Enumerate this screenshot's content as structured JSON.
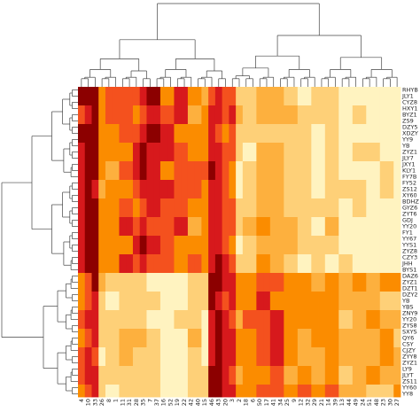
{
  "chart_data": {
    "type": "heatmap",
    "colormap": [
      "#8c0000",
      "#d7191c",
      "#f4511e",
      "#fb8c00",
      "#fdb03e",
      "#fed078",
      "#fff3c0"
    ],
    "column_labels": [
      "4",
      "10",
      "33",
      "26",
      "8",
      "1",
      "11",
      "31",
      "28",
      "35",
      "7",
      "37",
      "16",
      "52",
      "19",
      "22",
      "42",
      "40",
      "15",
      "46",
      "43",
      "20",
      "3",
      "2",
      "18",
      "6",
      "50",
      "17",
      "41",
      "34",
      "25",
      "9",
      "12",
      "32",
      "29",
      "21",
      "14",
      "39",
      "13",
      "44",
      "49",
      "24",
      "51",
      "48",
      "23",
      "30",
      "27"
    ],
    "row_labels": [
      "RHYB",
      "JLY1",
      "CYZ8",
      "HXY1",
      "BYZ1",
      "ZS9",
      "DZY5",
      "XDZY",
      "YY9",
      "YB",
      "ZYZ1",
      "JLY7",
      "JXY1",
      "KLY1",
      "FY7B",
      "FY52",
      "ZS12",
      "XY60",
      "BDHZ",
      "GYZ6",
      "ZYT6",
      "GDJ",
      "YY20",
      "FY1",
      "YY67",
      "YYS1",
      "ZYZ8",
      "CZY3",
      "JHH",
      "BYS1",
      "DAZ6",
      "ZYZ1",
      "DZT1",
      "DZY2",
      "YB",
      "YBS",
      "ZNY9",
      "YY20",
      "ZYS8",
      "SXYS",
      "QY6",
      "CSY",
      "CJZY",
      "ZYY8",
      "ZYZ1",
      "LY9",
      "JLYT",
      "ZS11",
      "YY60",
      "YY8"
    ],
    "cluster_a_rows": 30,
    "cluster_b_rows": 20,
    "column_groups": [
      {
        "columns": [
          "4"
        ],
        "level_a": 1,
        "level_b": 2
      },
      {
        "columns": [
          "10",
          "33"
        ],
        "level_a": 0,
        "level_b": 1
      },
      {
        "columns": [
          "26",
          "8",
          "1"
        ],
        "level_a": 3,
        "level_b": 5
      },
      {
        "columns": [
          "11",
          "31",
          "28"
        ],
        "level_a": 2,
        "level_b": 5
      },
      {
        "columns": [
          "35",
          "7",
          "37"
        ],
        "level_a": 1,
        "level_b": 5
      },
      {
        "columns": [
          "16",
          "52",
          "19",
          "22"
        ],
        "level_a": 2,
        "level_b": 6
      },
      {
        "columns": [
          "42",
          "40",
          "15"
        ],
        "level_a": 3,
        "level_b": 5
      },
      {
        "columns": [
          "46",
          "43"
        ],
        "level_a": 1,
        "level_b": 0
      },
      {
        "columns": [
          "20",
          "3"
        ],
        "level_a": 2,
        "level_b": 1
      },
      {
        "columns": [
          "2",
          "18",
          "6"
        ],
        "level_a": 5,
        "level_b": 3
      },
      {
        "columns": [
          "50",
          "17",
          "41",
          "34"
        ],
        "level_a": 4,
        "level_b": 2
      },
      {
        "columns": [
          "25",
          "9",
          "12",
          "32",
          "29",
          "21",
          "14",
          "39"
        ],
        "level_a": 5,
        "level_b": 3
      },
      {
        "columns": [
          "13",
          "44",
          "49",
          "24",
          "51",
          "48",
          "23",
          "30",
          "27"
        ],
        "level_a": 6,
        "level_b": 4
      }
    ]
  }
}
